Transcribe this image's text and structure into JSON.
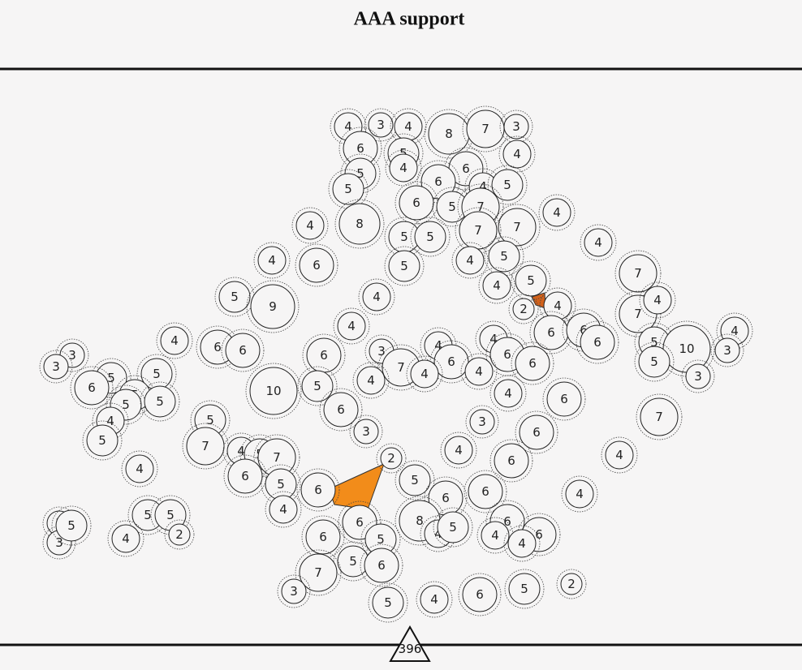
{
  "header": {
    "title": "AAA support"
  },
  "nodes": [
    4,
    3,
    4,
    8,
    7,
    3,
    6,
    5,
    4,
    5,
    6,
    4,
    6,
    4,
    5,
    5,
    6,
    5,
    7,
    7,
    4,
    4,
    8,
    5,
    5,
    7,
    4,
    4,
    6,
    5,
    4,
    5,
    4,
    5,
    5,
    9,
    4,
    2,
    4,
    4,
    7,
    7,
    4,
    4,
    5,
    10,
    3,
    5,
    3,
    7,
    4,
    4,
    2,
    6,
    4,
    6,
    6,
    6,
    6,
    4,
    6,
    4,
    3,
    7,
    4,
    4,
    4,
    6,
    4,
    6,
    6,
    6,
    3,
    3,
    5,
    6,
    5,
    5,
    5,
    5,
    10,
    5,
    6,
    4,
    5,
    5,
    7,
    4,
    5,
    7,
    6,
    4,
    3,
    3,
    6,
    4,
    6,
    2,
    5,
    6,
    4,
    5,
    6,
    6,
    6,
    8,
    6,
    6,
    4,
    4,
    4,
    5,
    5,
    5,
    2,
    4,
    3,
    3,
    5,
    6,
    5,
    5,
    6,
    7,
    3,
    5,
    4,
    6,
    5
  ],
  "footer": {
    "count": 396
  }
}
